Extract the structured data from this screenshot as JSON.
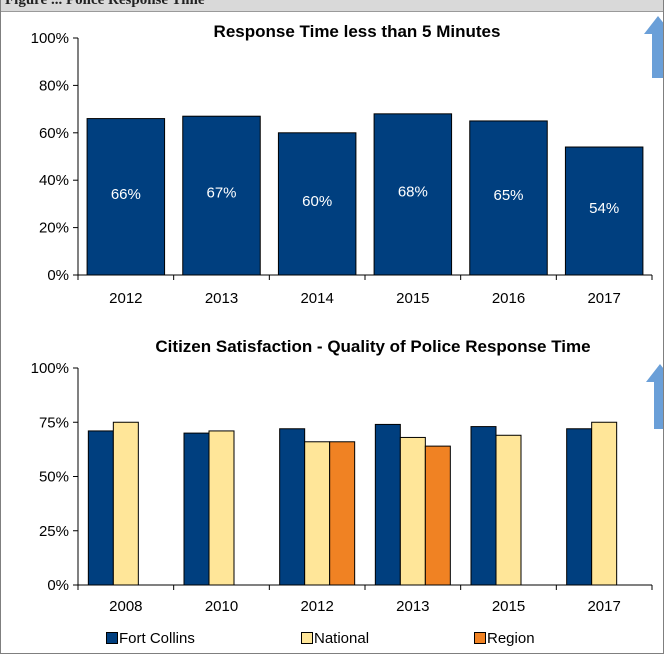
{
  "header_strip": {
    "text": "Figure ... Police Response Time"
  },
  "chart_data": [
    {
      "type": "bar",
      "title": "Response Time less than 5 Minutes",
      "categories": [
        "2012",
        "2013",
        "2014",
        "2015",
        "2016",
        "2017"
      ],
      "values": [
        66,
        67,
        60,
        68,
        65,
        54
      ],
      "data_labels": [
        "66%",
        "67%",
        "60%",
        "68%",
        "65%",
        "54%"
      ],
      "ylim": [
        0,
        100
      ],
      "yticks": [
        0,
        20,
        40,
        60,
        80,
        100
      ],
      "ytick_labels": [
        "0%",
        "20%",
        "40%",
        "60%",
        "80%",
        "100%"
      ],
      "xlabel": "",
      "ylabel": "",
      "grid": false,
      "colors": {
        "bar": "#003f7f",
        "label": "#ffffff",
        "arrow": "#6a9fd8"
      },
      "annotations": [
        {
          "kind": "up-arrow"
        }
      ]
    },
    {
      "type": "bar",
      "title": "Citizen Satisfaction - Quality of Police Response Time",
      "categories": [
        "2008",
        "2010",
        "2012",
        "2013",
        "2015",
        "2017"
      ],
      "series": [
        {
          "name": "Fort Collins",
          "values": [
            71,
            70,
            72,
            74,
            73,
            72
          ],
          "color": "#003f7f"
        },
        {
          "name": "National",
          "values": [
            75,
            71,
            66,
            68,
            69,
            75
          ],
          "color": "#ffe699"
        },
        {
          "name": "Region",
          "values": [
            null,
            null,
            66,
            64,
            null,
            null
          ],
          "color": "#f08223"
        }
      ],
      "ylim": [
        0,
        100
      ],
      "yticks": [
        0,
        25,
        50,
        75,
        100
      ],
      "ytick_labels": [
        "0%",
        "25%",
        "50%",
        "75%",
        "100%"
      ],
      "xlabel": "",
      "ylabel": "",
      "grid": false,
      "legend": "bottom",
      "colors": {
        "arrow": "#6a9fd8"
      },
      "annotations": [
        {
          "kind": "up-arrow"
        }
      ]
    }
  ]
}
